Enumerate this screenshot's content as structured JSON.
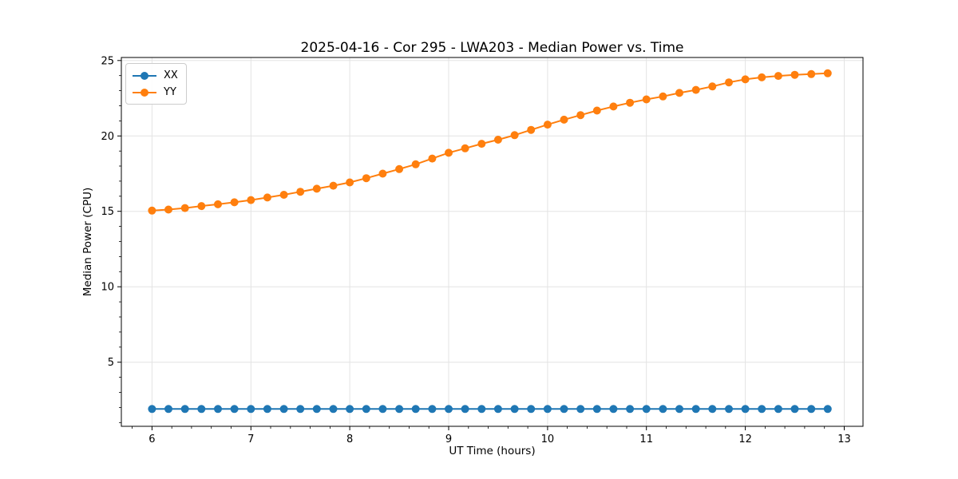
{
  "chart_data": {
    "type": "line",
    "title": "2025-04-16 - Cor 295 - LWA203 - Median Power vs. Time",
    "xlabel": "UT Time (hours)",
    "ylabel": "Median Power (CPU)",
    "x": [
      6.0,
      6.1667,
      6.3333,
      6.5,
      6.6667,
      6.8333,
      7.0,
      7.1667,
      7.3333,
      7.5,
      7.6667,
      7.8333,
      8.0,
      8.1667,
      8.3333,
      8.5,
      8.6667,
      8.8333,
      9.0,
      9.1667,
      9.3333,
      9.5,
      9.6667,
      9.8333,
      10.0,
      10.1667,
      10.3333,
      10.5,
      10.6667,
      10.8333,
      11.0,
      11.1667,
      11.3333,
      11.5,
      11.6667,
      11.8333,
      12.0,
      12.1667,
      12.3333,
      12.5,
      12.6667,
      12.8333
    ],
    "series": [
      {
        "name": "XX",
        "color": "#1f77b4",
        "values": [
          1.9,
          1.9,
          1.9,
          1.9,
          1.9,
          1.9,
          1.9,
          1.9,
          1.9,
          1.9,
          1.9,
          1.9,
          1.9,
          1.9,
          1.9,
          1.9,
          1.9,
          1.9,
          1.9,
          1.9,
          1.9,
          1.9,
          1.9,
          1.9,
          1.9,
          1.9,
          1.9,
          1.9,
          1.9,
          1.9,
          1.9,
          1.9,
          1.9,
          1.9,
          1.9,
          1.9,
          1.9,
          1.9,
          1.9,
          1.9,
          1.9,
          1.9
        ]
      },
      {
        "name": "YY",
        "color": "#ff7f0e",
        "values": [
          15.05,
          15.12,
          15.22,
          15.35,
          15.47,
          15.6,
          15.75,
          15.92,
          16.1,
          16.3,
          16.5,
          16.7,
          16.92,
          17.2,
          17.5,
          17.8,
          18.12,
          18.5,
          18.88,
          19.18,
          19.48,
          19.75,
          20.05,
          20.4,
          20.75,
          21.08,
          21.38,
          21.68,
          21.95,
          22.2,
          22.42,
          22.62,
          22.85,
          23.05,
          23.28,
          23.55,
          23.75,
          23.88,
          23.98,
          24.05,
          24.1,
          24.15
        ]
      }
    ],
    "xlim": [
      5.69,
      13.19
    ],
    "ylim": [
      0.75,
      25.2
    ],
    "x_ticks": [
      6,
      7,
      8,
      9,
      10,
      11,
      12,
      13
    ],
    "y_ticks": [
      5,
      10,
      15,
      20,
      25
    ],
    "x_minor_step": 0.2,
    "y_minor_step": 1,
    "grid": true,
    "grid_color": "#e3e3e3",
    "background": "#ffffff",
    "legend_position": "upper left",
    "marker": "circle"
  }
}
